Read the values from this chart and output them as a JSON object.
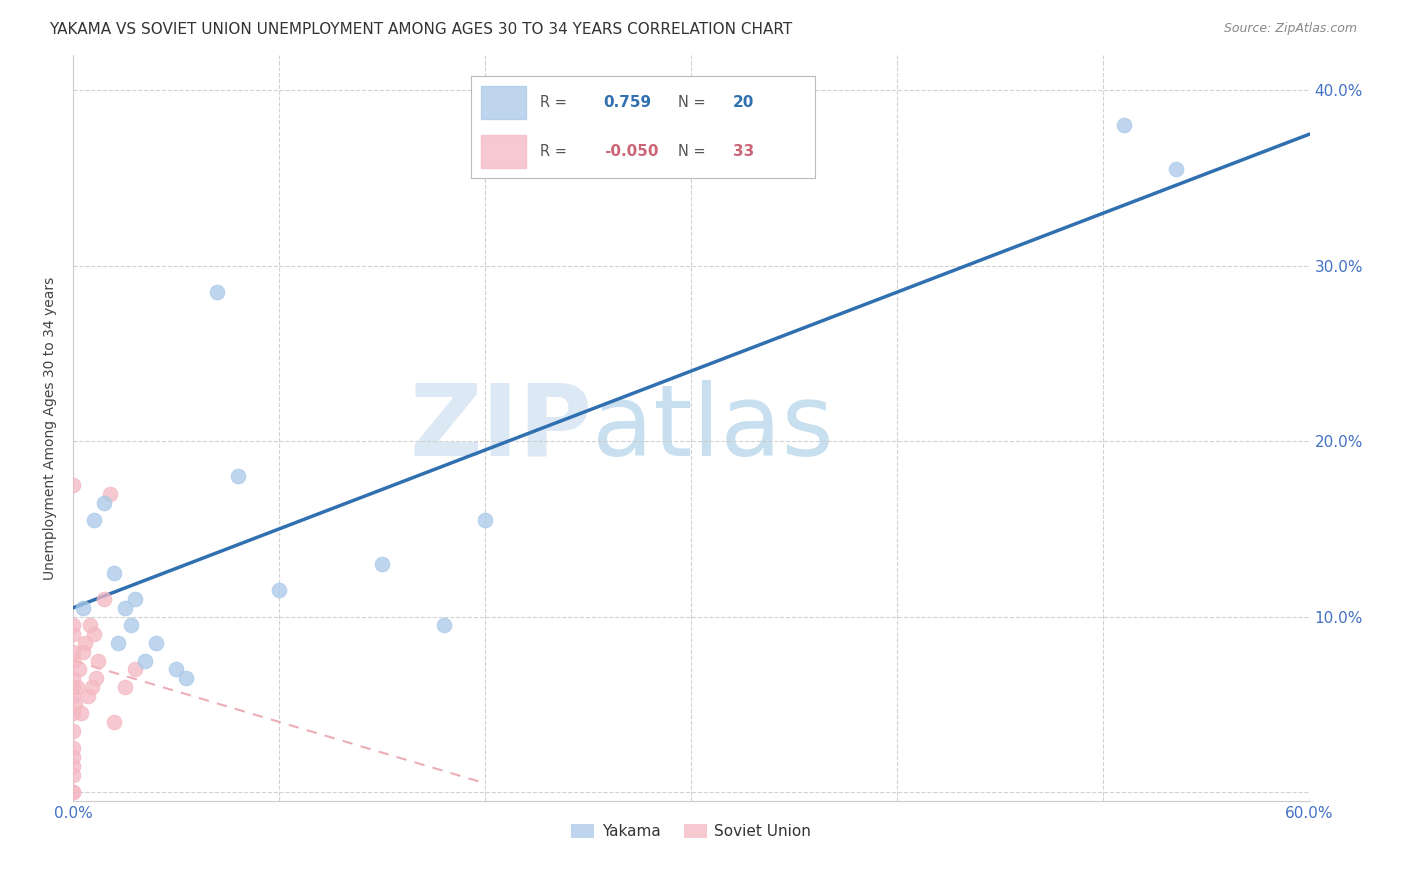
{
  "title": "YAKAMA VS SOVIET UNION UNEMPLOYMENT AMONG AGES 30 TO 34 YEARS CORRELATION CHART",
  "source": "Source: ZipAtlas.com",
  "ylabel": "Unemployment Among Ages 30 to 34 years",
  "xlim": [
    0.0,
    0.6
  ],
  "ylim": [
    -0.005,
    0.42
  ],
  "xticks": [
    0.0,
    0.1,
    0.2,
    0.3,
    0.4,
    0.5,
    0.6
  ],
  "yticks": [
    0.0,
    0.1,
    0.2,
    0.3,
    0.4
  ],
  "ytick_labels": [
    "",
    "10.0%",
    "20.0%",
    "30.0%",
    "40.0%"
  ],
  "xtick_labels": [
    "0.0%",
    "",
    "",
    "",
    "",
    "",
    "60.0%"
  ],
  "yakama_color": "#a8c8e8",
  "soviet_color": "#f4b8c1",
  "trendline_yakama_color": "#3070b0",
  "trendline_soviet_color": "#e8a0a8",
  "watermark_zip": "ZIP",
  "watermark_atlas": "atlas",
  "legend_R_yakama": "0.759",
  "legend_N_yakama": "20",
  "legend_R_soviet": "-0.050",
  "legend_N_soviet": "33",
  "yakama_x": [
    0.005,
    0.01,
    0.015,
    0.02,
    0.022,
    0.025,
    0.028,
    0.03,
    0.035,
    0.04,
    0.05,
    0.055,
    0.07,
    0.08,
    0.1,
    0.15,
    0.18,
    0.2,
    0.51,
    0.535
  ],
  "yakama_y": [
    0.105,
    0.155,
    0.165,
    0.125,
    0.085,
    0.105,
    0.095,
    0.11,
    0.075,
    0.085,
    0.07,
    0.065,
    0.285,
    0.18,
    0.115,
    0.13,
    0.095,
    0.155,
    0.38,
    0.355
  ],
  "soviet_x": [
    0.0,
    0.0,
    0.0,
    0.0,
    0.0,
    0.0,
    0.0,
    0.0,
    0.0,
    0.0,
    0.0,
    0.0,
    0.0,
    0.0,
    0.0,
    0.0,
    0.001,
    0.002,
    0.003,
    0.004,
    0.005,
    0.006,
    0.007,
    0.008,
    0.009,
    0.01,
    0.011,
    0.012,
    0.015,
    0.018,
    0.02,
    0.025,
    0.03
  ],
  "soviet_y": [
    0.0,
    0.0,
    0.01,
    0.015,
    0.02,
    0.025,
    0.035,
    0.045,
    0.055,
    0.06,
    0.065,
    0.075,
    0.08,
    0.09,
    0.095,
    0.175,
    0.05,
    0.06,
    0.07,
    0.045,
    0.08,
    0.085,
    0.055,
    0.095,
    0.06,
    0.09,
    0.065,
    0.075,
    0.11,
    0.17,
    0.04,
    0.06,
    0.07
  ],
  "background_color": "#ffffff",
  "grid_color": "#cccccc",
  "axis_color": "#4472c4",
  "title_fontsize": 11,
  "label_fontsize": 10,
  "trendline_yakama_start_x": 0.0,
  "trendline_yakama_start_y": 0.105,
  "trendline_yakama_end_x": 0.6,
  "trendline_yakama_end_y": 0.375,
  "trendline_soviet_start_x": 0.0,
  "trendline_soviet_start_y": 0.075,
  "trendline_soviet_end_x": 0.2,
  "trendline_soviet_end_y": 0.005
}
